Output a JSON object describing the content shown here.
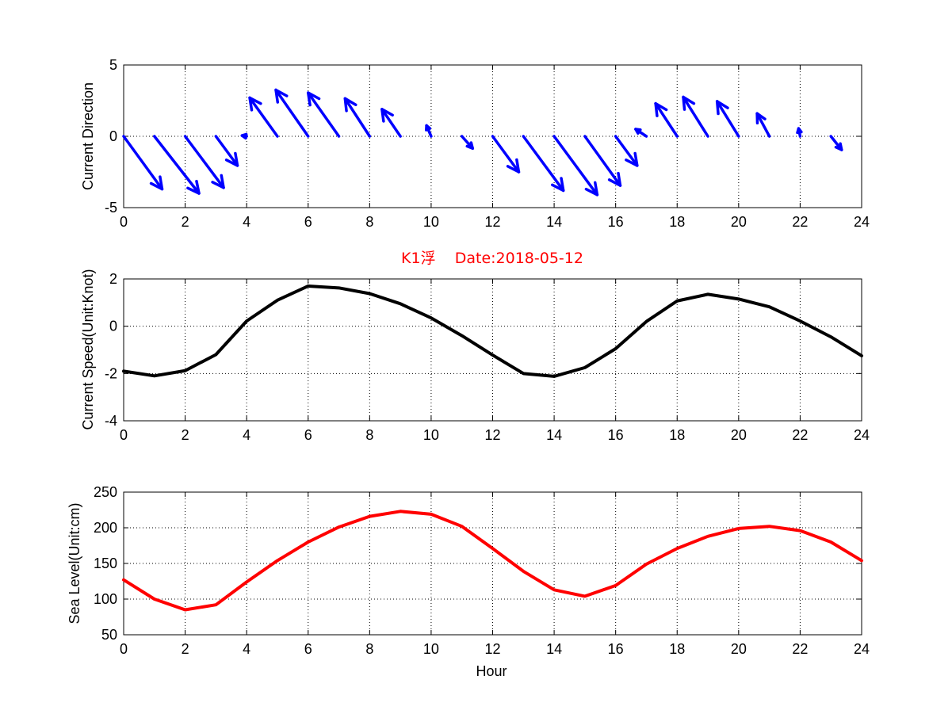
{
  "chart_data": [
    {
      "type": "quiver",
      "title": "",
      "xlabel": "",
      "ylabel": "Current Direction",
      "xlim": [
        0,
        24
      ],
      "ylim": [
        -5,
        5
      ],
      "xticks": [
        0,
        2,
        4,
        6,
        8,
        10,
        12,
        14,
        16,
        18,
        20,
        22,
        24
      ],
      "yticks": [
        -5,
        0,
        5
      ],
      "grid": true,
      "color": "#0000ff",
      "series": [
        {
          "name": "current",
          "x": [
            0,
            1,
            2,
            3,
            4,
            5,
            6,
            7,
            8,
            9,
            10,
            11,
            12,
            13,
            14,
            15,
            16,
            17,
            18,
            19,
            20,
            21,
            22,
            23
          ],
          "u": [
            1.25,
            1.45,
            1.25,
            0.7,
            -0.15,
            -0.9,
            -1.05,
            -1.0,
            -0.8,
            -0.6,
            -0.15,
            0.35,
            0.85,
            1.3,
            1.4,
            1.15,
            0.7,
            -0.35,
            -0.7,
            -0.8,
            -0.7,
            -0.4,
            -0.05,
            0.35
          ],
          "v": [
            -3.7,
            -4.0,
            -3.6,
            -2.05,
            0.05,
            2.7,
            3.25,
            3.05,
            2.65,
            1.9,
            0.75,
            -0.85,
            -2.5,
            -3.8,
            -4.1,
            -3.45,
            -2.05,
            0.5,
            2.3,
            2.75,
            2.45,
            1.6,
            0.55,
            -0.95
          ]
        }
      ]
    },
    {
      "type": "line",
      "title": "K1浮    Date:2018-05-12",
      "xlabel": "",
      "ylabel": "Current Speed(Unit:Knot)",
      "xlim": [
        0,
        24
      ],
      "ylim": [
        -4,
        2
      ],
      "xticks": [
        0,
        2,
        4,
        6,
        8,
        10,
        12,
        14,
        16,
        18,
        20,
        22,
        24
      ],
      "yticks": [
        -4,
        -2,
        0,
        2
      ],
      "grid": true,
      "color": "#000000",
      "title_color": "#ff0000",
      "series": [
        {
          "name": "speed",
          "x": [
            0,
            1,
            2,
            3,
            4,
            5,
            6,
            7,
            8,
            9,
            10,
            11,
            12,
            13,
            14,
            15,
            16,
            17,
            18,
            19,
            20,
            21,
            22,
            23,
            24
          ],
          "values": [
            -1.9,
            -2.1,
            -1.88,
            -1.2,
            0.22,
            1.1,
            1.7,
            1.62,
            1.38,
            0.95,
            0.35,
            -0.4,
            -1.22,
            -2.0,
            -2.12,
            -1.75,
            -0.95,
            0.2,
            1.07,
            1.35,
            1.15,
            0.82,
            0.22,
            -0.45,
            -1.25
          ]
        }
      ]
    },
    {
      "type": "line",
      "title": "",
      "xlabel": "Hour",
      "ylabel": "Sea Level(Unit:cm)",
      "xlim": [
        0,
        24
      ],
      "ylim": [
        50,
        250
      ],
      "xticks": [
        0,
        2,
        4,
        6,
        8,
        10,
        12,
        14,
        16,
        18,
        20,
        22,
        24
      ],
      "yticks": [
        50,
        100,
        150,
        200,
        250
      ],
      "grid": true,
      "color": "#ff0000",
      "series": [
        {
          "name": "sea level",
          "x": [
            0,
            1,
            2,
            3,
            4,
            5,
            6,
            7,
            8,
            9,
            10,
            11,
            12,
            13,
            14,
            15,
            16,
            17,
            18,
            19,
            20,
            21,
            22,
            23,
            24
          ],
          "values": [
            127,
            100,
            85,
            92,
            124,
            154,
            180,
            201,
            216,
            223,
            219,
            202,
            171,
            139,
            113,
            104,
            119,
            149,
            171,
            188,
            199,
            202,
            196,
            180,
            154
          ]
        }
      ]
    }
  ]
}
